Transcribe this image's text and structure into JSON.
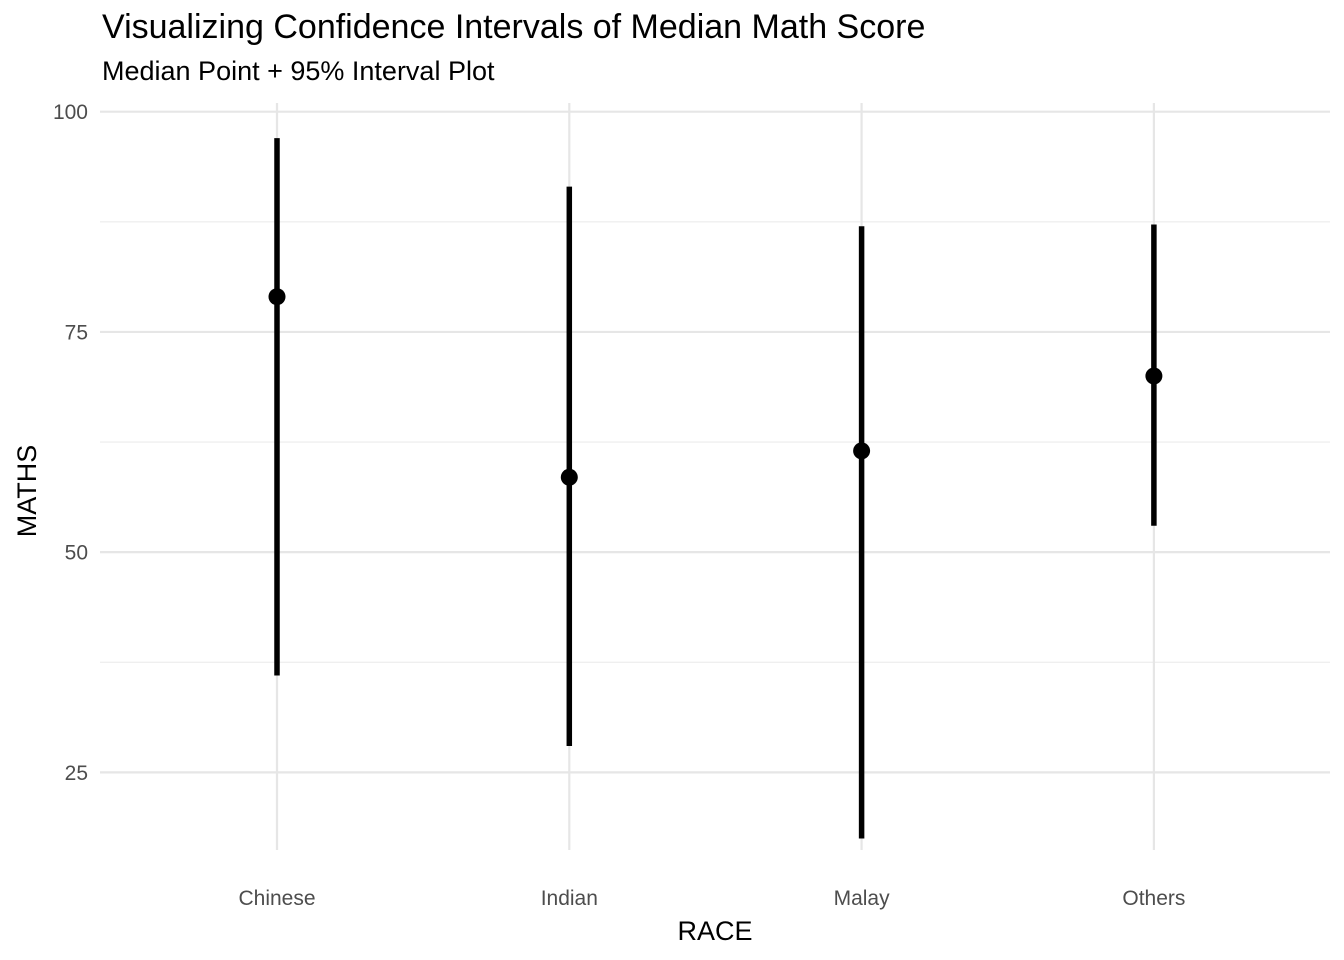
{
  "chart_data": {
    "type": "pointrange",
    "title": "Visualizing Confidence Intervals of Median Math Score",
    "subtitle": "Median Point + 95% Interval Plot",
    "xlabel": "RACE",
    "ylabel": "MATHS",
    "categories": [
      "Chinese",
      "Indian",
      "Malay",
      "Others"
    ],
    "median": [
      79,
      58.5,
      61.5,
      70
    ],
    "lower": [
      36,
      28,
      17.5,
      53
    ],
    "upper": [
      97,
      91.5,
      87,
      87.2
    ],
    "interval_level": "95%",
    "y_ticks": [
      25,
      50,
      75,
      100
    ],
    "y_tick_labels": [
      "25",
      "50",
      "75",
      "100"
    ],
    "ylim": [
      13.2,
      101
    ],
    "grid": true,
    "colors": {
      "mark": "#000000",
      "grid_major": "#e6e6e6",
      "grid_minor": "#efefef",
      "tick_text": "#4d4d4d"
    }
  }
}
